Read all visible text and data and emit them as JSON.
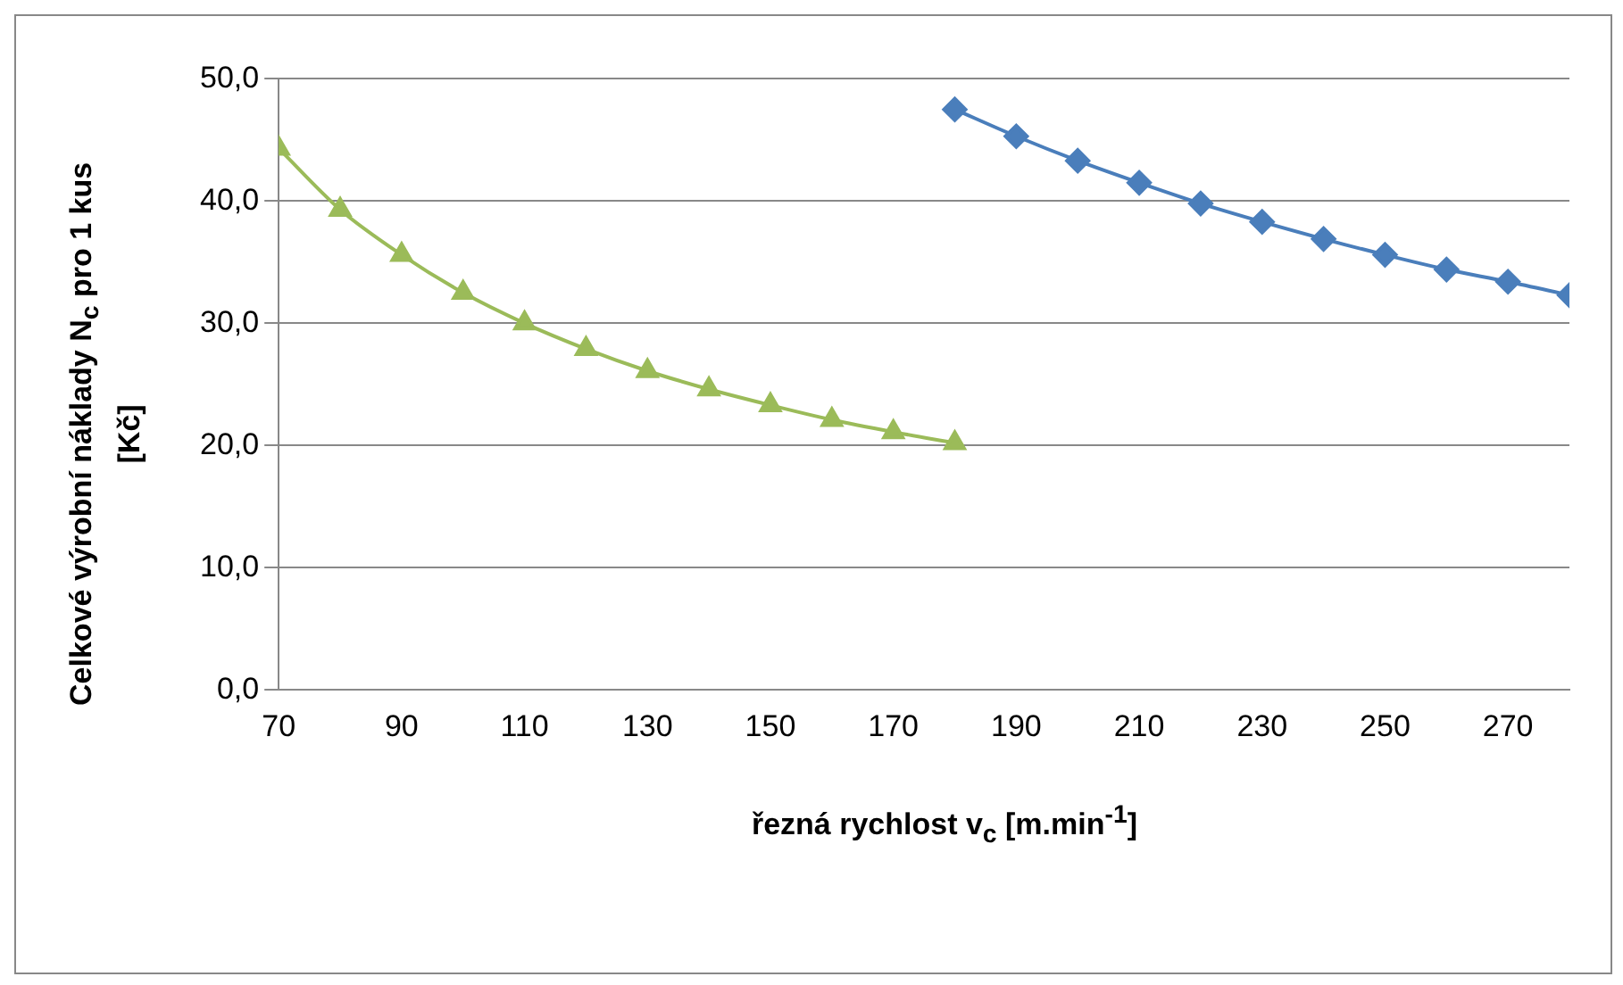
{
  "chart_data": {
    "type": "line",
    "xlabel": "řezná rychlost v$_{c}$ [m.min$^{-1}$]",
    "ylabel": "Celkové výrobní náklady N$_{c}$ pro 1 kus [Kč]",
    "series": [
      {
        "color": "#4a7ebb",
        "marker": "diamond",
        "x": [
          180,
          190,
          200,
          210,
          220,
          230,
          240,
          250,
          260,
          270,
          280
        ],
        "values": [
          47.5,
          45.3,
          43.3,
          41.5,
          39.8,
          38.3,
          36.9,
          35.6,
          34.4,
          33.4,
          32.3
        ]
      },
      {
        "color": "#9bbb59",
        "marker": "triangle",
        "x": [
          70,
          80,
          90,
          100,
          110,
          120,
          130,
          140,
          150,
          160,
          170,
          180
        ],
        "values": [
          44.3,
          39.3,
          35.6,
          32.5,
          30.0,
          27.9,
          26.1,
          24.6,
          23.3,
          22.1,
          21.1,
          20.2
        ]
      }
    ],
    "xlim": [
      70,
      280
    ],
    "xticks": [
      70,
      90,
      110,
      130,
      150,
      170,
      190,
      210,
      230,
      250,
      270
    ],
    "ylim": [
      0,
      50
    ],
    "yticks": [
      {
        "value": 0,
        "label": "0,0"
      },
      {
        "value": 10,
        "label": "10,0"
      },
      {
        "value": 20,
        "label": "20,0"
      },
      {
        "value": 30,
        "label": "30,0"
      },
      {
        "value": 40,
        "label": "40,0"
      },
      {
        "value": 50,
        "label": "50,0"
      }
    ],
    "grid": "y",
    "legend": false
  }
}
